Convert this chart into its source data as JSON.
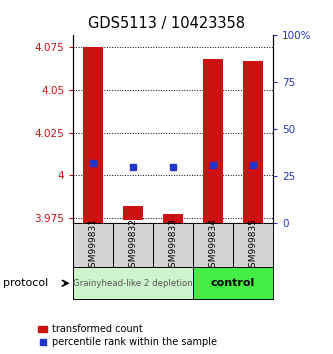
{
  "title": "GDS5113 / 10423358",
  "samples": [
    "GSM999831",
    "GSM999832",
    "GSM999833",
    "GSM999834",
    "GSM999835"
  ],
  "red_bar_top": [
    4.075,
    3.982,
    3.977,
    4.068,
    4.067
  ],
  "red_bar_bottom": [
    3.972,
    3.974,
    3.972,
    3.972,
    3.972
  ],
  "blue_marker_y": [
    4.007,
    4.005,
    4.005,
    4.006,
    4.006
  ],
  "ylim_left": [
    3.972,
    4.082
  ],
  "ylim_right": [
    0,
    100
  ],
  "left_yticks": [
    3.975,
    4.0,
    4.025,
    4.05,
    4.075
  ],
  "right_yticks": [
    0,
    25,
    50,
    75,
    100
  ],
  "left_ytick_labels": [
    "3.975",
    "4",
    "4.025",
    "4.05",
    "4.075"
  ],
  "right_ytick_labels": [
    "0",
    "25",
    "50",
    "75",
    "100%"
  ],
  "gridlines_y": [
    3.975,
    4.0,
    4.025,
    4.05,
    4.075
  ],
  "bar_width": 0.5,
  "red_color": "#cc1111",
  "blue_color": "#2233cc",
  "group1_label": "Grainyhead-like 2 depletion",
  "group2_label": "control",
  "group1_color": "#ccf5cc",
  "group2_color": "#44ee44",
  "protocol_label": "protocol",
  "legend1": "transformed count",
  "legend2": "percentile rank within the sample"
}
